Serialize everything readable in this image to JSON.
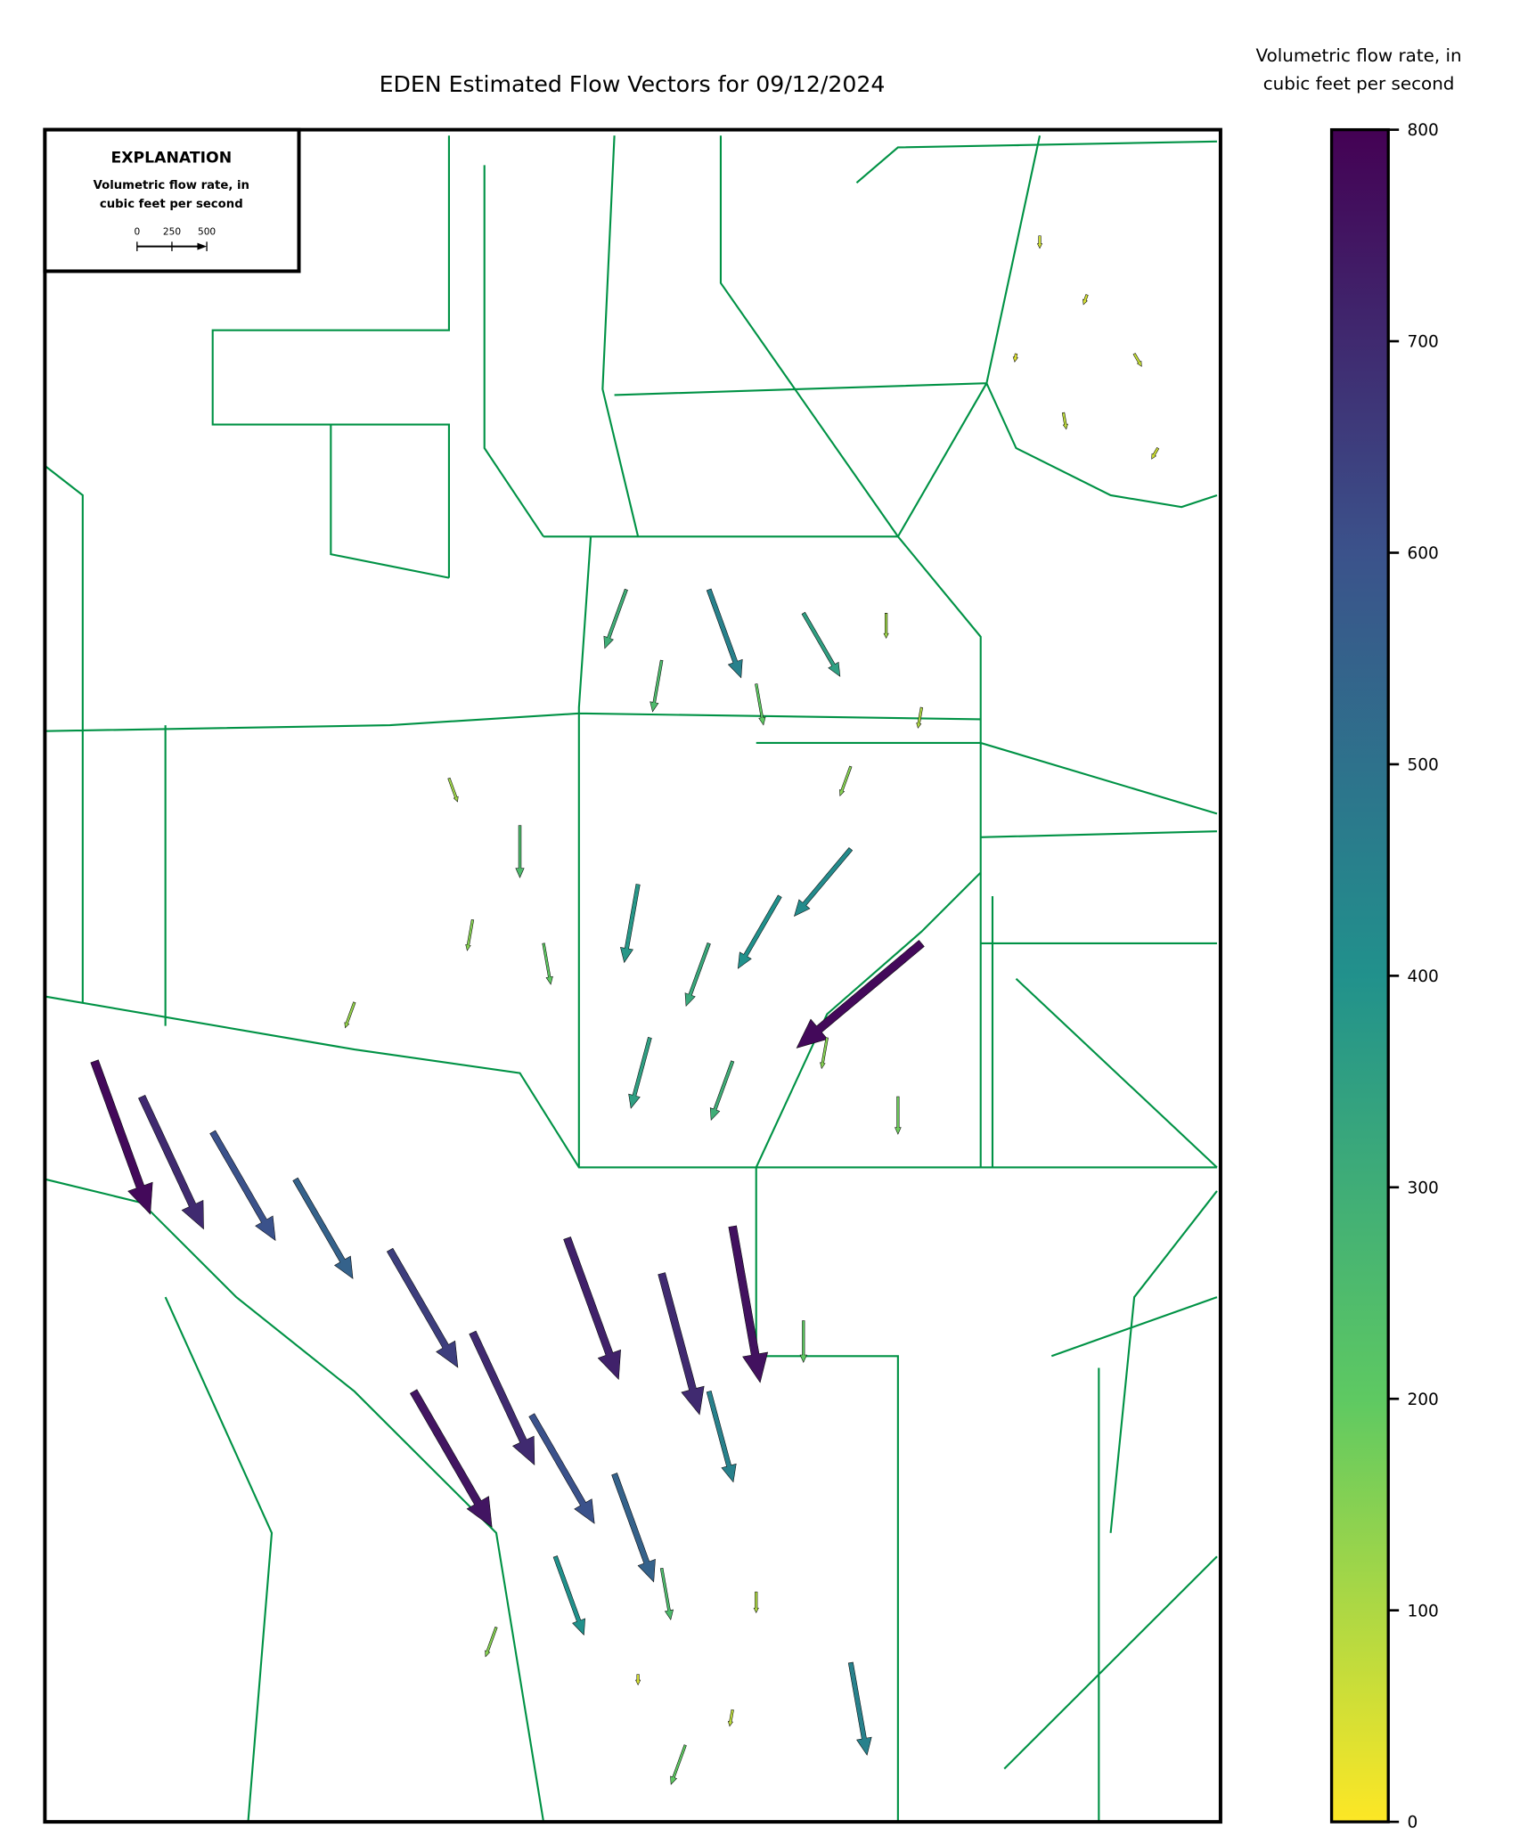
{
  "chart_data": {
    "type": "quiver",
    "title": "EDEN Estimated Flow Vectors for 09/12/2024",
    "colorbar": {
      "label": [
        "Volumetric flow rate, in",
        "cubic feet per second"
      ],
      "lim": [
        0,
        800
      ],
      "ticks": [
        0,
        100,
        200,
        300,
        400,
        500,
        600,
        700,
        800
      ],
      "colormap": [
        "#fde725",
        "#5ec962",
        "#21918c",
        "#3b528b",
        "#440154"
      ]
    },
    "explanation": {
      "title": "EXPLANATION",
      "lines": [
        "Volumetric flow rate, in",
        "cubic feet per second"
      ],
      "scale_ticks": [
        0,
        250,
        500
      ]
    },
    "vectors": {
      "magnitudes": [
        60,
        50,
        70,
        80,
        60,
        40,
        300,
        450,
        350,
        120,
        250,
        200,
        100,
        150,
        120,
        250,
        150,
        200,
        130,
        380,
        320,
        400,
        420,
        780,
        350,
        300,
        150,
        180,
        780,
        700,
        600,
        550,
        650,
        700,
        720,
        700,
        760,
        750,
        600,
        550,
        450,
        200,
        400,
        250,
        100,
        50,
        80,
        450,
        200,
        150
      ],
      "directions": [
        180,
        200,
        150,
        170,
        210,
        190,
        200,
        160,
        150,
        180,
        190,
        170,
        190,
        200,
        160,
        180,
        190,
        170,
        200,
        190,
        200,
        210,
        220,
        230,
        195,
        200,
        190,
        180,
        160,
        155,
        150,
        150,
        150,
        155,
        160,
        165,
        170,
        150,
        150,
        160,
        165,
        180,
        160,
        170,
        180,
        180,
        190,
        170,
        200,
        200
      ]
    }
  }
}
